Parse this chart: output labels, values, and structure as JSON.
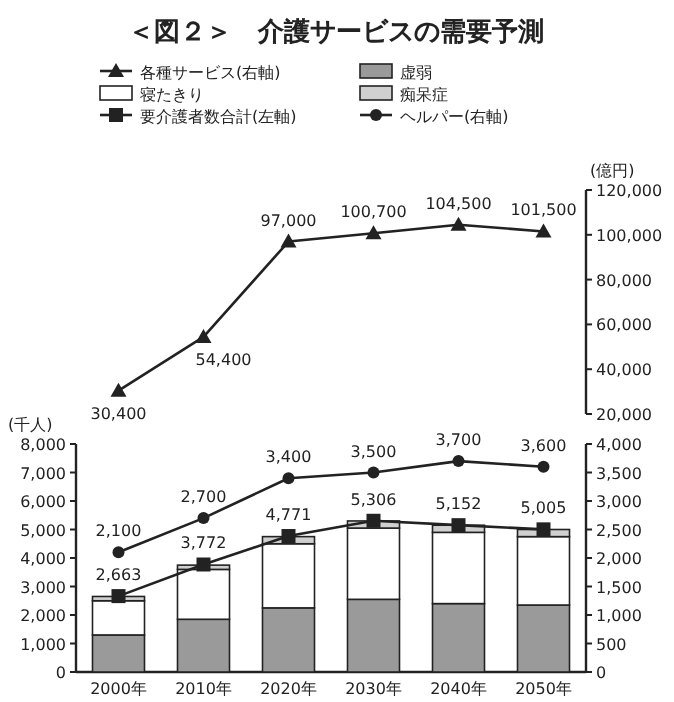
{
  "chart_data": [
    {
      "type": "line",
      "title": "＜図２＞　介護サービスの需要予測",
      "ylabel": "(億円)",
      "categories": [
        null,
        null,
        null,
        null,
        null,
        null
      ],
      "tick_labels": "y",
      "legend": "top",
      "ylim": [
        20000,
        120000
      ],
      "yticks": [
        {
          "value": 20000,
          "label": "20,000"
        },
        {
          "value": 40000,
          "label": "40,000"
        },
        {
          "value": 60000,
          "label": "60,000"
        },
        {
          "value": 80000,
          "label": "80,000"
        },
        {
          "value": 100000,
          "label": "100,000"
        },
        {
          "value": 120000,
          "label": "120,000"
        }
      ],
      "series": [
        {
          "name": "各種サービス(右軸)",
          "color": "#222222",
          "marker": "triangle",
          "values": [
            30400,
            54400,
            97000,
            100700,
            104500,
            101500
          ],
          "value_labels": [
            "30,400",
            "54,400",
            "97,000",
            "100,700",
            "104,500",
            "101,500"
          ]
        }
      ]
    },
    {
      "type": "bar",
      "stacked": true,
      "ylabel": "(千人)",
      "legend": "top",
      "categories": [
        "2000年",
        "2010年",
        "2020年",
        "2030年",
        "2040年",
        "2050年"
      ],
      "ylim": [
        0,
        8000
      ],
      "yticks": [
        0,
        {
          "value": 1000,
          "label": "1,000"
        },
        {
          "value": 2000,
          "label": "2,000"
        },
        {
          "value": 3000,
          "label": "3,000"
        },
        {
          "value": 4000,
          "label": "4,000"
        },
        {
          "value": 5000,
          "label": "5,000"
        },
        {
          "value": 6000,
          "label": "6,000"
        },
        {
          "value": 7000,
          "label": "7,000"
        },
        {
          "value": 8000,
          "label": "8,000"
        }
      ],
      "y2lim": [
        0,
        4000
      ],
      "y2ticks": [
        0,
        500,
        {
          "value": 1000,
          "label": "1,000"
        },
        {
          "value": 1500,
          "label": "1,500"
        },
        {
          "value": 2000,
          "label": "2,000"
        },
        {
          "value": 2500,
          "label": "2,500"
        },
        {
          "value": 3000,
          "label": "3,000"
        },
        {
          "value": 3500,
          "label": "3,500"
        },
        {
          "value": 4000,
          "label": "4,000"
        }
      ],
      "series": [
        {
          "name": "虚弱",
          "color": "#9a9a9a",
          "values": [
            1300,
            1850,
            2250,
            2550,
            2400,
            2350
          ]
        },
        {
          "name": "寝たきり",
          "color": "#ffffff",
          "values": [
            1200,
            1750,
            2250,
            2500,
            2500,
            2400
          ]
        },
        {
          "name": "痴呆症",
          "color": "#d0d0d0",
          "values": [
            150,
            150,
            250,
            250,
            250,
            250
          ]
        },
        {
          "name": "要介護者数合計(左軸)",
          "type": "line",
          "color": "#222222",
          "marker": "square",
          "values": [
            2663,
            3772,
            4771,
            5306,
            5152,
            5005
          ],
          "value_labels": [
            "2,663",
            "3,772",
            "4,771",
            "5,306",
            "5,152",
            "5,005"
          ]
        },
        {
          "name": "ヘルパー(右軸)",
          "type": "line",
          "axis": "y2",
          "color": "#222222",
          "marker": "circle",
          "values": [
            2100,
            2700,
            3400,
            3500,
            3700,
            3600
          ],
          "value_labels": [
            "2,100",
            "2,700",
            "3,400",
            "3,500",
            "3,700",
            "3,600"
          ]
        }
      ]
    }
  ]
}
